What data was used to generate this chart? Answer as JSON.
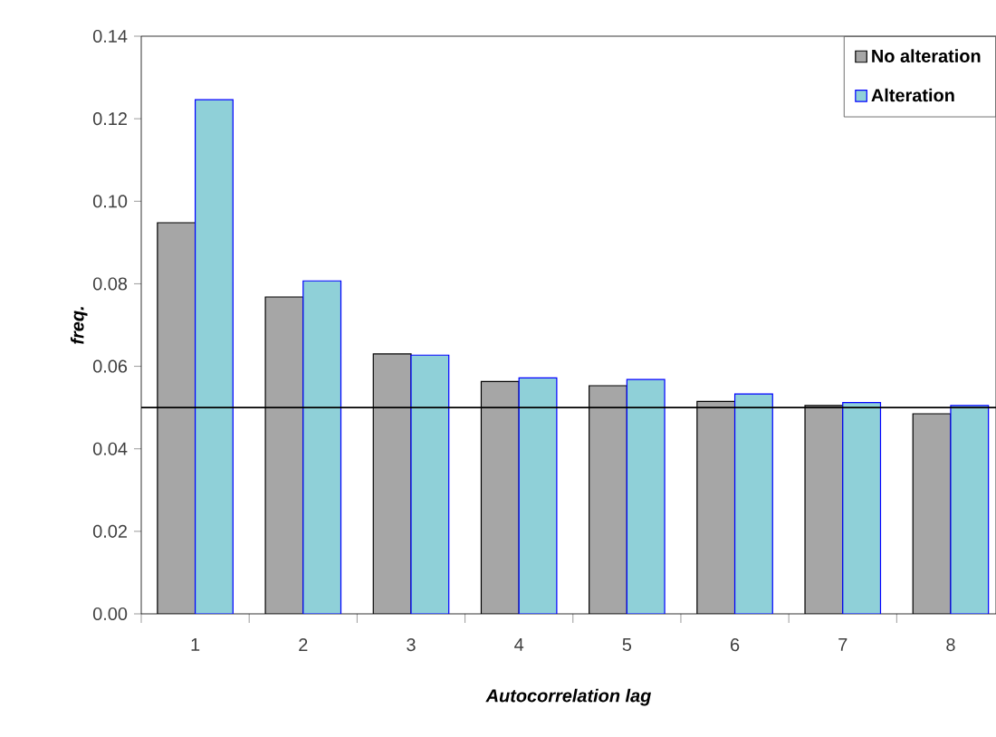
{
  "chart_data": {
    "type": "bar",
    "xlabel": "Autocorrelation lag",
    "ylabel": "freq.",
    "categories": [
      "1",
      "2",
      "3",
      "4",
      "5",
      "6",
      "7",
      "8"
    ],
    "series": [
      {
        "name": "No alteration",
        "color": "#a6a6a6",
        "values": [
          0.0948,
          0.0768,
          0.063,
          0.0563,
          0.0553,
          0.0515,
          0.0505,
          0.0485
        ]
      },
      {
        "name": "Alteration",
        "color": "#8fd0d8",
        "values": [
          0.1246,
          0.0807,
          0.0627,
          0.0572,
          0.0568,
          0.0533,
          0.0512,
          0.0505
        ]
      }
    ],
    "ylim": [
      0,
      0.14
    ],
    "yticks": [
      {
        "value": 0,
        "label": "0.00"
      },
      {
        "value": 0.02,
        "label": "0.02"
      },
      {
        "value": 0.04,
        "label": "0.04"
      },
      {
        "value": 0.06,
        "label": "0.06"
      },
      {
        "value": 0.08,
        "label": "0.08"
      },
      {
        "value": 0.1,
        "label": "0.10"
      },
      {
        "value": 0.12,
        "label": "0.12"
      },
      {
        "value": 0.14,
        "label": "0.14"
      }
    ],
    "ref_lines": [
      {
        "axis": "y",
        "value": 0.05,
        "color": "#000000"
      }
    ],
    "grid": false,
    "legend": "top right"
  }
}
